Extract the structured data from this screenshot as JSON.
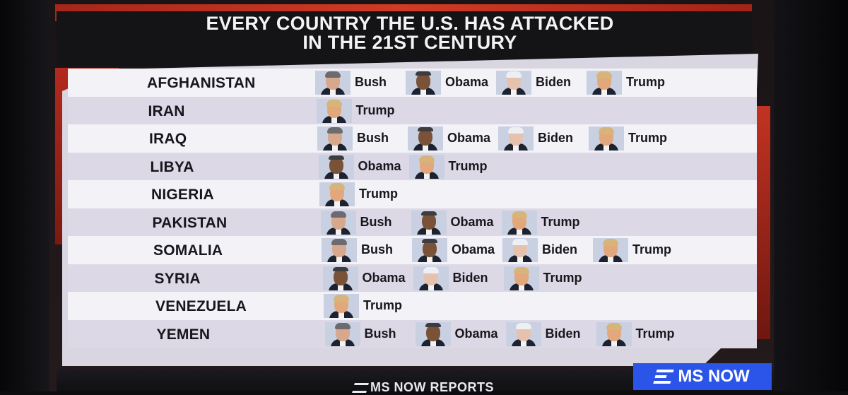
{
  "title": {
    "line1": "EVERY COUNTRY THE U.S. HAS ATTACKED",
    "line2": "IN THE 21ST CENTURY"
  },
  "rows": [
    {
      "country": "AFGHANISTAN",
      "presidents": [
        "Bush",
        "Obama",
        "Biden",
        "Trump"
      ]
    },
    {
      "country": "IRAN",
      "presidents": [
        "Trump"
      ]
    },
    {
      "country": "IRAQ",
      "presidents": [
        "Bush",
        "Obama",
        "Biden",
        "Trump"
      ]
    },
    {
      "country": "LIBYA",
      "presidents": [
        "Obama",
        "Trump"
      ]
    },
    {
      "country": "NIGERIA",
      "presidents": [
        "Trump"
      ]
    },
    {
      "country": "PAKISTAN",
      "presidents": [
        "Bush",
        "Obama",
        "Trump"
      ]
    },
    {
      "country": "SOMALIA",
      "presidents": [
        "Bush",
        "Obama",
        "Biden",
        "Trump"
      ]
    },
    {
      "country": "SYRIA",
      "presidents": [
        "Obama",
        "Biden",
        "Trump"
      ]
    },
    {
      "country": "VENEZUELA",
      "presidents": [
        "Trump"
      ]
    },
    {
      "country": "YEMEN",
      "presidents": [
        "Bush",
        "Obama",
        "Biden",
        "Trump"
      ]
    }
  ],
  "footer": {
    "program": "MS NOW REPORTS",
    "network": "MS NOW"
  },
  "colors": {
    "brand_blue": "#2b54e8",
    "accent_red": "#c23322",
    "title_bar": "#141416"
  }
}
